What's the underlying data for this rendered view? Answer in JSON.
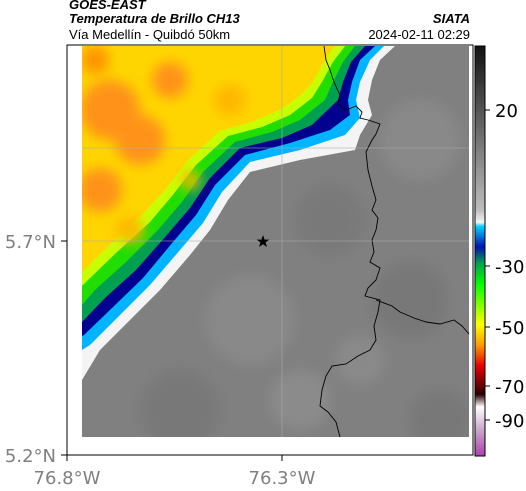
{
  "header": {
    "brand": "GOES-EAST",
    "product": "Temperatura de Brillo CH13",
    "route": "Vía Medellín - Quibdó 50km",
    "agency": "SIATA",
    "timestamp": "2024-02-11 02:29"
  },
  "axes": {
    "lat_labels": [
      "5.7°N",
      "5.2°N"
    ],
    "lon_labels": [
      "76.8°W",
      "76.3°W"
    ]
  },
  "colorbar": {
    "tick_labels": [
      "20",
      "-30",
      "-50",
      "-70",
      "-90"
    ],
    "colors": [
      "#1a1a1a",
      "#808080",
      "#f0f0f0",
      "#00c8ff",
      "#0000b4",
      "#00a050",
      "#00ff00",
      "#ffff00",
      "#ff8c00",
      "#e60000",
      "#2a0000",
      "#ffffff",
      "#c060c0"
    ]
  },
  "map_colors": {
    "warm_sea": "#808080",
    "land_gray": "#7a7a7a",
    "cold_orange": "#ff8c1a",
    "cold_yellow": "#ffd500",
    "green": "#22dd00",
    "cyan": "#00b4ff",
    "navy": "#000090"
  },
  "marker": {
    "icon": "star-icon"
  }
}
